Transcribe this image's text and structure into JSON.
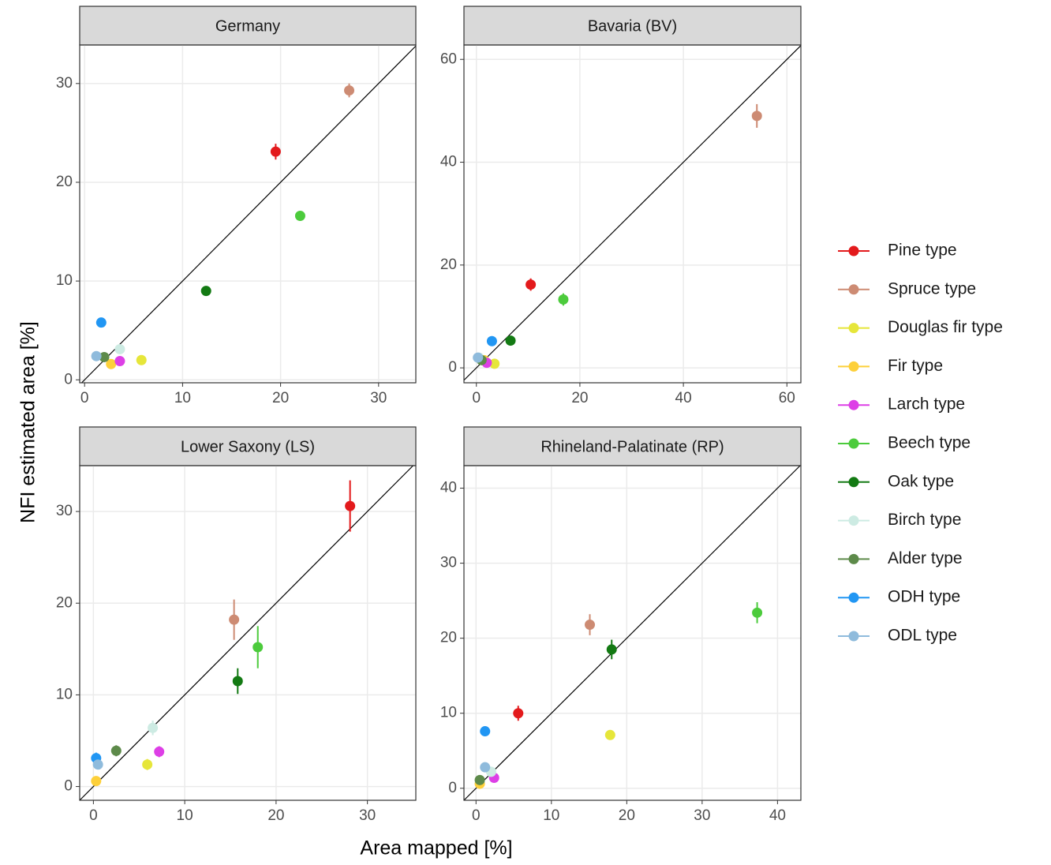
{
  "ylabel": "NFI estimated area [%]",
  "xlabel": "Area mapped [%]",
  "chart_data": [
    {
      "type": "scatter",
      "title": "Germany",
      "xlim": [
        -0.5,
        33.8
      ],
      "ylim": [
        -0.3,
        33.9
      ],
      "xticks": [
        0,
        10,
        20,
        30
      ],
      "yticks": [
        0,
        10,
        20,
        30
      ],
      "grid": true,
      "identity_line": true,
      "legend": "right",
      "series": [
        {
          "name": "Pine type",
          "color": "#e31a1c",
          "x": [
            19.5
          ],
          "values": [
            23.1
          ],
          "errors": [
            0.8
          ]
        },
        {
          "name": "Spruce type",
          "color": "#cd8b73",
          "x": [
            27.0
          ],
          "values": [
            29.3
          ],
          "errors": [
            0.7
          ]
        },
        {
          "name": "Douglas fir type",
          "color": "#e6e63a",
          "x": [
            5.8
          ],
          "values": [
            2.0
          ],
          "errors": [
            0.3
          ]
        },
        {
          "name": "Fir type",
          "color": "#fdd03a",
          "x": [
            2.7
          ],
          "values": [
            1.6
          ],
          "errors": [
            0.3
          ]
        },
        {
          "name": "Larch type",
          "color": "#dd3fe6",
          "x": [
            3.6
          ],
          "values": [
            1.9
          ],
          "errors": [
            0.3
          ]
        },
        {
          "name": "Beech type",
          "color": "#4ccb3c",
          "x": [
            22.0
          ],
          "values": [
            16.6
          ],
          "errors": [
            0.4
          ]
        },
        {
          "name": "Oak type",
          "color": "#137a13",
          "x": [
            12.4
          ],
          "values": [
            9.0
          ],
          "errors": [
            0.4
          ]
        },
        {
          "name": "Birch type",
          "color": "#cdebe3",
          "x": [
            3.6
          ],
          "values": [
            3.1
          ],
          "errors": [
            0.4
          ]
        },
        {
          "name": "Alder type",
          "color": "#5d8a4a",
          "x": [
            2.0
          ],
          "values": [
            2.3
          ],
          "errors": [
            0.3
          ]
        },
        {
          "name": "ODH type",
          "color": "#2196f3",
          "x": [
            1.7
          ],
          "values": [
            5.8
          ],
          "errors": [
            0.4
          ]
        },
        {
          "name": "ODL type",
          "color": "#8fbbdc",
          "x": [
            1.2
          ],
          "values": [
            2.4
          ],
          "errors": [
            0.3
          ]
        }
      ]
    },
    {
      "type": "scatter",
      "title": "Bavaria (BV)",
      "xlim": [
        -2.4,
        62.7
      ],
      "ylim": [
        -2.9,
        62.8
      ],
      "xticks": [
        0,
        20,
        40,
        60
      ],
      "yticks": [
        0,
        20,
        40,
        60
      ],
      "grid": true,
      "identity_line": true,
      "series": [
        {
          "name": "Pine type",
          "color": "#e31a1c",
          "x": [
            10.5
          ],
          "values": [
            16.2
          ],
          "errors": [
            1.2
          ]
        },
        {
          "name": "Spruce type",
          "color": "#cd8b73",
          "x": [
            54.2
          ],
          "values": [
            49.0
          ],
          "errors": [
            2.3
          ]
        },
        {
          "name": "Douglas fir type",
          "color": "#e6e63a",
          "x": [
            3.5
          ],
          "values": [
            0.8
          ],
          "errors": [
            0.5
          ]
        },
        {
          "name": "Fir type",
          "color": "#fdd03a",
          "x": [
            1.5
          ],
          "values": [
            1.5
          ],
          "errors": [
            0.5
          ]
        },
        {
          "name": "Larch type",
          "color": "#dd3fe6",
          "x": [
            2.0
          ],
          "values": [
            1.0
          ],
          "errors": [
            0.5
          ]
        },
        {
          "name": "Beech type",
          "color": "#4ccb3c",
          "x": [
            16.8
          ],
          "values": [
            13.3
          ],
          "errors": [
            1.2
          ]
        },
        {
          "name": "Oak type",
          "color": "#137a13",
          "x": [
            6.6
          ],
          "values": [
            5.3
          ],
          "errors": [
            0.8
          ]
        },
        {
          "name": "Birch type",
          "color": "#cdebe3",
          "x": [
            0.5
          ],
          "values": [
            2.0
          ],
          "errors": [
            0.5
          ]
        },
        {
          "name": "Alder type",
          "color": "#5d8a4a",
          "x": [
            1.0
          ],
          "values": [
            1.5
          ],
          "errors": [
            0.4
          ]
        },
        {
          "name": "ODH type",
          "color": "#2196f3",
          "x": [
            3.0
          ],
          "values": [
            5.2
          ],
          "errors": [
            0.8
          ]
        },
        {
          "name": "ODL type",
          "color": "#8fbbdc",
          "x": [
            0.3
          ],
          "values": [
            2.0
          ],
          "errors": [
            0.5
          ]
        }
      ]
    },
    {
      "type": "scatter",
      "title": "Lower Saxony (LS)",
      "xlim": [
        -1.5,
        35.3
      ],
      "ylim": [
        -1.5,
        35.0
      ],
      "xticks": [
        0,
        10,
        20,
        30
      ],
      "yticks": [
        0,
        10,
        20,
        30
      ],
      "grid": true,
      "identity_line": true,
      "series": [
        {
          "name": "Pine type",
          "color": "#e31a1c",
          "x": [
            28.1
          ],
          "values": [
            30.6
          ],
          "errors": [
            2.8
          ]
        },
        {
          "name": "Spruce type",
          "color": "#cd8b73",
          "x": [
            15.4
          ],
          "values": [
            18.2
          ],
          "errors": [
            2.2
          ]
        },
        {
          "name": "Douglas fir type",
          "color": "#e6e63a",
          "x": [
            5.9
          ],
          "values": [
            2.4
          ],
          "errors": [
            0.6
          ]
        },
        {
          "name": "Fir type",
          "color": "#fdd03a",
          "x": [
            0.3
          ],
          "values": [
            0.6
          ],
          "errors": [
            0.3
          ]
        },
        {
          "name": "Larch type",
          "color": "#dd3fe6",
          "x": [
            7.2
          ],
          "values": [
            3.8
          ],
          "errors": [
            0.6
          ]
        },
        {
          "name": "Beech type",
          "color": "#4ccb3c",
          "x": [
            18.0
          ],
          "values": [
            15.2
          ],
          "errors": [
            2.3
          ]
        },
        {
          "name": "Oak type",
          "color": "#137a13",
          "x": [
            15.8
          ],
          "values": [
            11.5
          ],
          "errors": [
            1.4
          ]
        },
        {
          "name": "Birch type",
          "color": "#cdebe3",
          "x": [
            6.5
          ],
          "values": [
            6.4
          ],
          "errors": [
            0.8
          ]
        },
        {
          "name": "Alder type",
          "color": "#5d8a4a",
          "x": [
            2.5
          ],
          "values": [
            3.9
          ],
          "errors": [
            0.6
          ]
        },
        {
          "name": "ODH type",
          "color": "#2196f3",
          "x": [
            0.3
          ],
          "values": [
            3.1
          ],
          "errors": [
            0.6
          ]
        },
        {
          "name": "ODL type",
          "color": "#8fbbdc",
          "x": [
            0.5
          ],
          "values": [
            2.4
          ],
          "errors": [
            0.5
          ]
        }
      ]
    },
    {
      "type": "scatter",
      "title": "Rhineland-Palatinate (RP)",
      "xlim": [
        -1.6,
        43.1
      ],
      "ylim": [
        -1.6,
        43.0
      ],
      "xticks": [
        0,
        10,
        20,
        30,
        40
      ],
      "yticks": [
        0,
        10,
        20,
        30,
        40
      ],
      "grid": true,
      "identity_line": true,
      "series": [
        {
          "name": "Pine type",
          "color": "#e31a1c",
          "x": [
            5.6
          ],
          "values": [
            10.0
          ],
          "errors": [
            1.0
          ]
        },
        {
          "name": "Spruce type",
          "color": "#cd8b73",
          "x": [
            15.1
          ],
          "values": [
            21.8
          ],
          "errors": [
            1.4
          ]
        },
        {
          "name": "Douglas fir type",
          "color": "#e6e63a",
          "x": [
            17.8
          ],
          "values": [
            7.1
          ],
          "errors": [
            0.5
          ]
        },
        {
          "name": "Fir type",
          "color": "#fdd03a",
          "x": [
            0.5
          ],
          "values": [
            0.6
          ],
          "errors": [
            0.3
          ]
        },
        {
          "name": "Larch type",
          "color": "#dd3fe6",
          "x": [
            2.4
          ],
          "values": [
            1.4
          ],
          "errors": [
            0.4
          ]
        },
        {
          "name": "Beech type",
          "color": "#4ccb3c",
          "x": [
            37.3
          ],
          "values": [
            23.4
          ],
          "errors": [
            1.4
          ]
        },
        {
          "name": "Oak type",
          "color": "#137a13",
          "x": [
            18.0
          ],
          "values": [
            18.5
          ],
          "errors": [
            1.3
          ]
        },
        {
          "name": "Birch type",
          "color": "#cdebe3",
          "x": [
            2.0
          ],
          "values": [
            2.2
          ],
          "errors": [
            0.5
          ]
        },
        {
          "name": "Alder type",
          "color": "#5d8a4a",
          "x": [
            0.5
          ],
          "values": [
            1.1
          ],
          "errors": [
            0.4
          ]
        },
        {
          "name": "ODH type",
          "color": "#2196f3",
          "x": [
            1.2
          ],
          "values": [
            7.6
          ],
          "errors": [
            0.5
          ]
        },
        {
          "name": "ODL type",
          "color": "#8fbbdc",
          "x": [
            1.2
          ],
          "values": [
            2.8
          ],
          "errors": [
            0.5
          ]
        }
      ]
    }
  ]
}
